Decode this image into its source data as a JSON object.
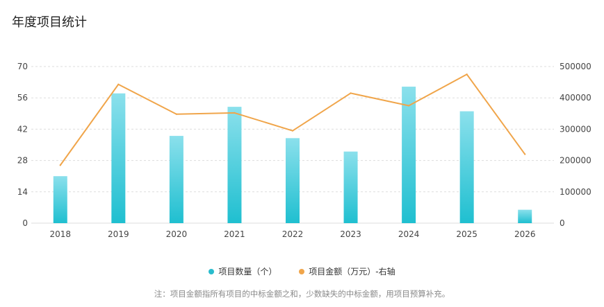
{
  "header": {
    "title": "年度项目统计"
  },
  "chart_data": {
    "type": "bar",
    "title": "年度项目统计",
    "categories": [
      "2018",
      "2019",
      "2020",
      "2021",
      "2022",
      "2023",
      "2024",
      "2025",
      "2026"
    ],
    "series": [
      {
        "name": "项目数量（个）",
        "type": "bar",
        "axis": "left",
        "values": [
          21,
          58,
          39,
          52,
          38,
          32,
          61,
          50,
          6
        ]
      },
      {
        "name": "项目金额（万元）-右轴",
        "type": "line",
        "axis": "right",
        "values": [
          185000,
          443000,
          348000,
          352000,
          295000,
          415000,
          375000,
          475000,
          220000
        ]
      }
    ],
    "y_left": {
      "ticks": [
        0,
        14,
        28,
        42,
        56,
        70
      ],
      "ylim": [
        0,
        70
      ]
    },
    "y_right": {
      "ticks": [
        0,
        100000,
        200000,
        300000,
        400000,
        500000
      ],
      "ylim": [
        0,
        500000
      ]
    },
    "colors": {
      "bar_top": "#8be0ec",
      "bar_bottom": "#1fbfd0",
      "line": "#f0a54a",
      "grid": "#dddddd"
    },
    "legend_position": "bottom-center",
    "grid": true
  },
  "legend": {
    "items": [
      {
        "label": "项目数量（个）",
        "color": "#29bccd"
      },
      {
        "label": "项目金额（万元）-右轴",
        "color": "#f0a54a"
      }
    ]
  },
  "footnote": "注：项目金额指所有项目的中标金额之和，少数缺失的中标金额，用项目预算补充。"
}
